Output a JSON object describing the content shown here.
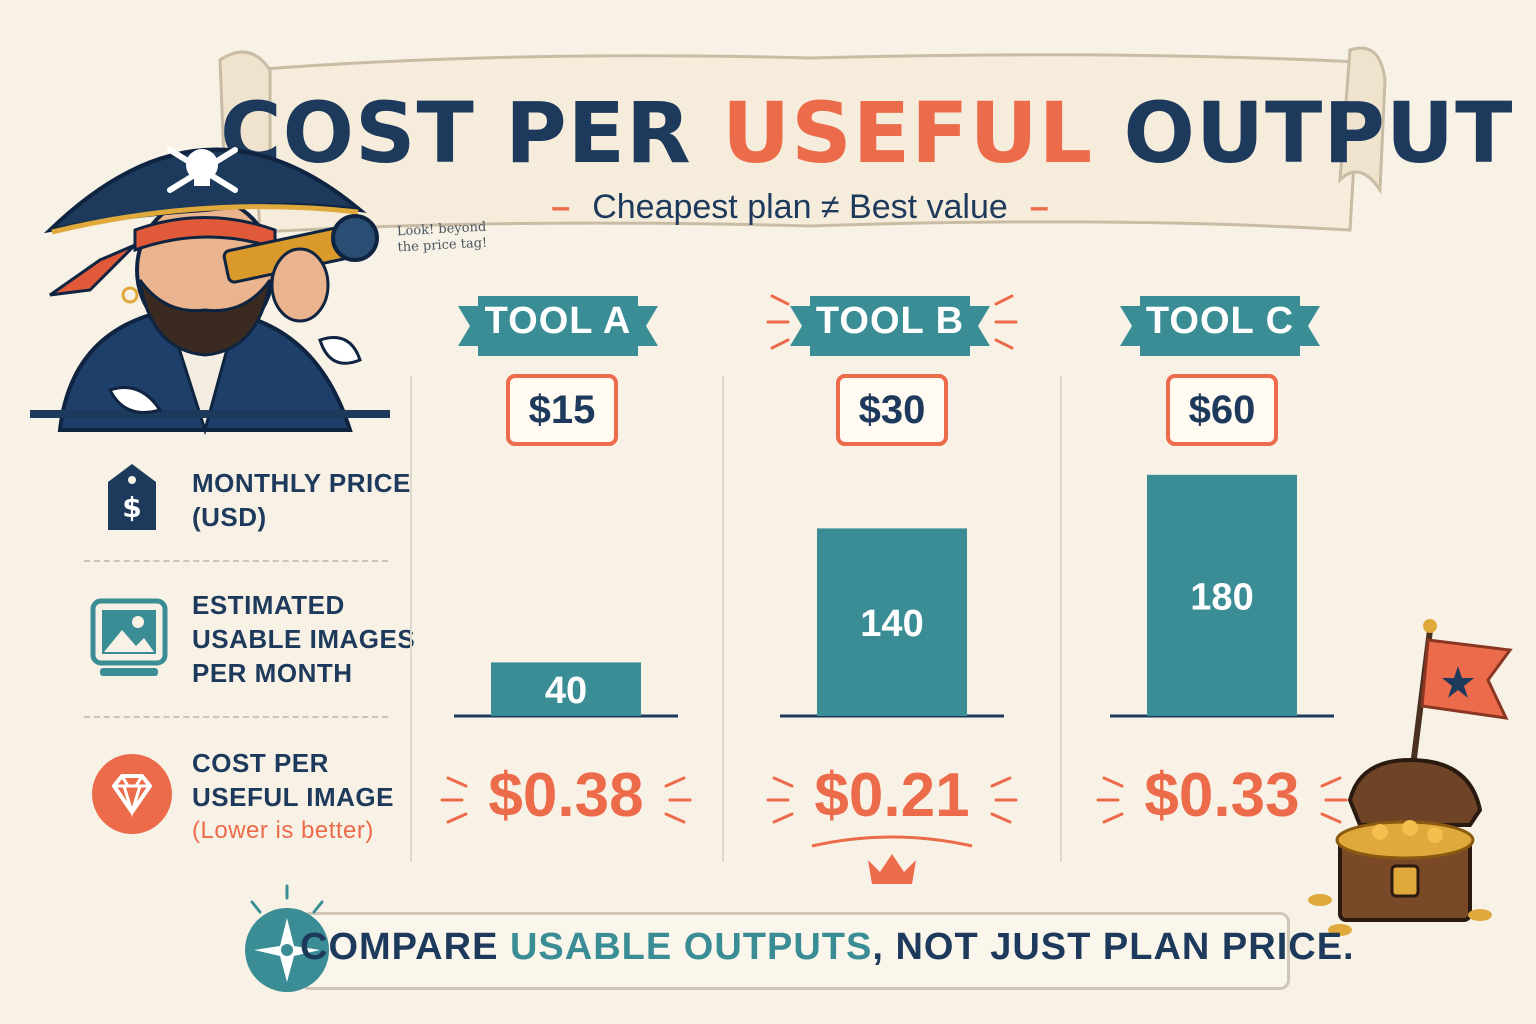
{
  "header": {
    "title_part1": "COST PER",
    "title_accent": "USEFUL",
    "title_part2": "OUTPUT",
    "subtitle": "Cheapest plan ≠ Best value",
    "scribble": "Look! beyond the price tag!"
  },
  "rows": {
    "price_label_1": "MONTHLY PRICE",
    "price_label_2": "(USD)",
    "images_label_1": "ESTIMATED",
    "images_label_2": "USABLE IMAGES",
    "images_label_3": "PER MONTH",
    "cost_label_1": "COST PER",
    "cost_label_2": "USEFUL IMAGE",
    "cost_note": "(Lower is better)"
  },
  "footer": {
    "part1": "COMPARE",
    "accent": "USABLE OUTPUTS",
    "part2": ", NOT JUST PLAN PRICE."
  },
  "colors": {
    "navy": "#1d3a5c",
    "accent": "#ec6b4a",
    "teal": "#3a8d94",
    "background": "#f8f2e6"
  },
  "icons": [
    "price-tag-icon",
    "image-icon",
    "diamond-icon",
    "compass-icon",
    "crown-icon",
    "treasure-chest-icon",
    "flag-icon",
    "pirate-illustration"
  ],
  "chart_data": {
    "type": "bar",
    "categories": [
      "TOOL A",
      "TOOL B",
      "TOOL C"
    ],
    "monthly_price": [
      "$15",
      "$30",
      "$60"
    ],
    "values": [
      40,
      140,
      180
    ],
    "cost_per_image": [
      "$0.38",
      "$0.21",
      "$0.33"
    ],
    "best_value": "TOOL B",
    "ylim": [
      0,
      200
    ],
    "grid": false
  }
}
